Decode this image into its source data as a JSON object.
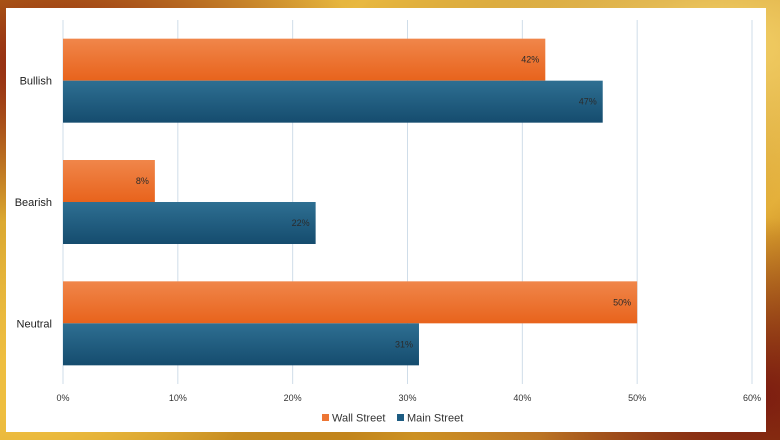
{
  "chart_data": {
    "type": "bar",
    "orientation": "horizontal",
    "categories": [
      "Bullish",
      "Bearish",
      "Neutral"
    ],
    "series": [
      {
        "name": "Wall Street",
        "color": "#ed7634",
        "values": [
          42,
          8,
          50
        ]
      },
      {
        "name": "Main Street",
        "color": "#1d5c82",
        "values": [
          47,
          22,
          31
        ]
      }
    ],
    "data_labels": {
      "Wall Street": [
        "42%",
        "8%",
        "50%"
      ],
      "Main Street": [
        "47%",
        "22%",
        "31%"
      ]
    },
    "x_ticks": [
      "0%",
      "10%",
      "20%",
      "30%",
      "40%",
      "50%",
      "60%"
    ],
    "xlim": [
      0,
      60
    ],
    "grid": true,
    "legend_position": "bottom"
  }
}
